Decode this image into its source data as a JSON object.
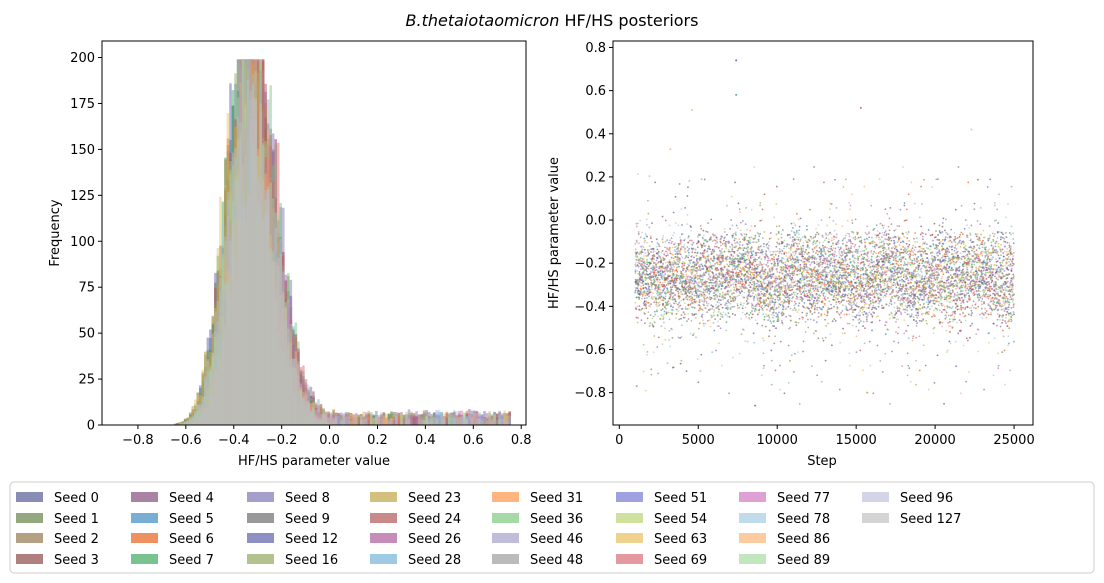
{
  "figure": {
    "title_italic": "B.thetaiotaomicron",
    "title_rest": " HF/HS posteriors"
  },
  "chart_data": [
    {
      "type": "histogram",
      "xlabel": "HF/HS parameter value",
      "ylabel": "Frequency",
      "xlim": [
        -0.95,
        0.82
      ],
      "ylim": [
        0,
        209
      ],
      "xticks": [
        "−0.8",
        "−0.6",
        "−0.4",
        "−0.2",
        "0.0",
        "0.2",
        "0.4",
        "0.6",
        "0.8"
      ],
      "xtick_values": [
        -0.8,
        -0.6,
        -0.4,
        -0.2,
        0.0,
        0.2,
        0.4,
        0.6,
        0.8
      ],
      "yticks": [
        "0",
        "25",
        "50",
        "75",
        "100",
        "125",
        "150",
        "175",
        "200"
      ],
      "ytick_values": [
        0,
        25,
        50,
        75,
        100,
        125,
        150,
        175,
        200
      ],
      "distribution": {
        "mode": -0.33,
        "peak_frequency": 199,
        "min_value": -0.86,
        "max_value": 0.75
      },
      "series": "all seeds (see legend), overlaid with alpha"
    },
    {
      "type": "scatter",
      "xlabel": "Step",
      "ylabel": "HF/HS parameter value",
      "xlim": [
        -400,
        26200
      ],
      "ylim": [
        -0.95,
        0.83
      ],
      "xticks": [
        "0",
        "5000",
        "10000",
        "15000",
        "20000",
        "25000"
      ],
      "xtick_values": [
        0,
        5000,
        10000,
        15000,
        20000,
        25000
      ],
      "yticks": [
        "−0.8",
        "−0.6",
        "−0.4",
        "−0.2",
        "0.0",
        "0.2",
        "0.4",
        "0.6",
        "0.8"
      ],
      "ytick_values": [
        -0.8,
        -0.6,
        -0.4,
        -0.2,
        0.0,
        0.2,
        0.4,
        0.6,
        0.8
      ],
      "step_range": [
        1000,
        25000
      ],
      "value_band": [
        -0.6,
        0.0
      ],
      "outliers": [
        {
          "x": 7400,
          "y": 0.74
        },
        {
          "x": 7400,
          "y": 0.58
        },
        {
          "x": 15300,
          "y": 0.52
        },
        {
          "x": 4600,
          "y": 0.51
        },
        {
          "x": 22300,
          "y": 0.42
        },
        {
          "x": 8600,
          "y": -0.86
        },
        {
          "x": 15700,
          "y": -0.8
        },
        {
          "x": 1100,
          "y": -0.77
        }
      ]
    }
  ],
  "legend": {
    "entries": [
      {
        "label": "Seed 0",
        "color": "#4a4f8c"
      },
      {
        "label": "Seed 1",
        "color": "#5b7a3a"
      },
      {
        "label": "Seed 2",
        "color": "#8c6d3f"
      },
      {
        "label": "Seed 3",
        "color": "#843c39"
      },
      {
        "label": "Seed 4",
        "color": "#7b4173"
      },
      {
        "label": "Seed 5",
        "color": "#3182bd"
      },
      {
        "label": "Seed 6",
        "color": "#e6550d"
      },
      {
        "label": "Seed 7",
        "color": "#31a354"
      },
      {
        "label": "Seed 8",
        "color": "#756bb1"
      },
      {
        "label": "Seed 9",
        "color": "#636363"
      },
      {
        "label": "Seed 12",
        "color": "#5254a3"
      },
      {
        "label": "Seed 16",
        "color": "#8ca252"
      },
      {
        "label": "Seed 23",
        "color": "#bd9e39"
      },
      {
        "label": "Seed 24",
        "color": "#ad494a"
      },
      {
        "label": "Seed 26",
        "color": "#a55194"
      },
      {
        "label": "Seed 28",
        "color": "#6baed6"
      },
      {
        "label": "Seed 31",
        "color": "#fd8d3c"
      },
      {
        "label": "Seed 36",
        "color": "#74c476"
      },
      {
        "label": "Seed 46",
        "color": "#9e9ac8"
      },
      {
        "label": "Seed 48",
        "color": "#969696"
      },
      {
        "label": "Seed 51",
        "color": "#6b6ecf"
      },
      {
        "label": "Seed 54",
        "color": "#b5cf6b"
      },
      {
        "label": "Seed 63",
        "color": "#e7ba52"
      },
      {
        "label": "Seed 69",
        "color": "#d6616b"
      },
      {
        "label": "Seed 77",
        "color": "#ce6dbd"
      },
      {
        "label": "Seed 78",
        "color": "#9ecae1"
      },
      {
        "label": "Seed 86",
        "color": "#fdae6b"
      },
      {
        "label": "Seed 89",
        "color": "#a1d99b"
      },
      {
        "label": "Seed 96",
        "color": "#bcbddc"
      },
      {
        "label": "Seed 127",
        "color": "#bdbdbd"
      }
    ]
  }
}
